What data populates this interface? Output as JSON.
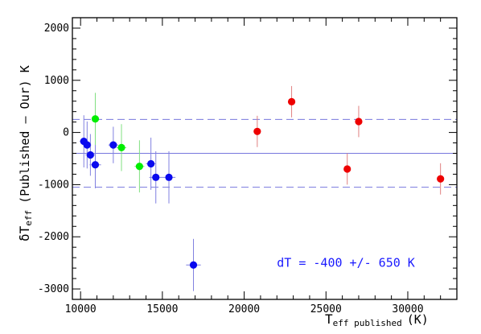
{
  "chart_data": {
    "type": "scatter",
    "title": "",
    "xlabel": {
      "main": "T",
      "sub": "eff published",
      "unit": "(K)"
    },
    "ylabel": {
      "main": "δT",
      "sub": "eff",
      "rest": "(Published – Our) K"
    },
    "xlim": [
      9500,
      33000
    ],
    "ylim": [
      -3200,
      2200
    ],
    "x_ticks": [
      10000,
      15000,
      20000,
      25000,
      30000
    ],
    "y_ticks": [
      -3000,
      -2000,
      -1000,
      0,
      1000,
      2000
    ],
    "grid": false,
    "reference_lines": [
      {
        "y": -400,
        "style": "solid",
        "color": "#7777dd"
      },
      {
        "y": 250,
        "style": "dashed",
        "color": "#7777dd"
      },
      {
        "y": -1050,
        "style": "dashed",
        "color": "#7777dd"
      }
    ],
    "annotation": {
      "text": "dT = -400 +/- 650 K",
      "color": "#1a1aff",
      "x": 22000,
      "y": -2500
    },
    "series": [
      {
        "color": "#0a0aee",
        "errcolor": "#8080e0",
        "points": [
          {
            "x": 10200,
            "y": -170,
            "xerr": 250,
            "yerr": 500
          },
          {
            "x": 10400,
            "y": -240,
            "xerr": 250,
            "yerr": 450
          },
          {
            "x": 10600,
            "y": -430,
            "xerr": 300,
            "yerr": 400
          },
          {
            "x": 10900,
            "y": -620,
            "xerr": 350,
            "yerr": 450
          },
          {
            "x": 12000,
            "y": -240,
            "xerr": 300,
            "yerr": 350
          },
          {
            "x": 14300,
            "y": -600,
            "xerr": 300,
            "yerr": 500
          },
          {
            "x": 14600,
            "y": -860,
            "xerr": 400,
            "yerr": 500
          },
          {
            "x": 15400,
            "y": -860,
            "xerr": 400,
            "yerr": 500
          },
          {
            "x": 16900,
            "y": -2540,
            "xerr": 450,
            "yerr": 500
          }
        ]
      },
      {
        "color": "#00ee00",
        "errcolor": "#80e080",
        "points": [
          {
            "x": 10900,
            "y": 260,
            "xerr": 200,
            "yerr": 500
          },
          {
            "x": 12500,
            "y": -290,
            "xerr": 300,
            "yerr": 450
          },
          {
            "x": 13600,
            "y": -650,
            "xerr": 300,
            "yerr": 500
          }
        ]
      },
      {
        "color": "#ee0000",
        "errcolor": "#e08080",
        "points": [
          {
            "x": 20800,
            "y": 20,
            "xerr": 0,
            "yerr": 300
          },
          {
            "x": 22900,
            "y": 590,
            "xerr": 0,
            "yerr": 300
          },
          {
            "x": 26300,
            "y": -700,
            "xerr": 0,
            "yerr": 300
          },
          {
            "x": 27000,
            "y": 210,
            "xerr": 0,
            "yerr": 300
          },
          {
            "x": 32000,
            "y": -890,
            "xerr": 0,
            "yerr": 300
          }
        ]
      }
    ]
  }
}
